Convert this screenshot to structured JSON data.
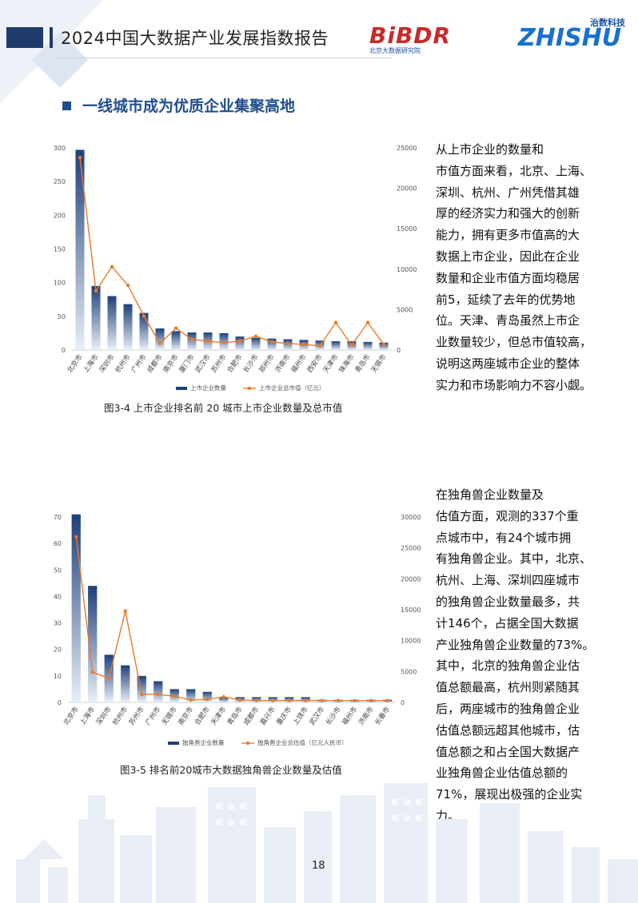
{
  "header": {
    "title": "2024中国大数据产业发展指数报告",
    "logo1_main": "BiBDR",
    "logo1_sub": "北京大数据研究院",
    "logo2_en": "ZHISHU",
    "logo2_cn": "治数科技"
  },
  "section": {
    "title": "一线城市成为优质企业集聚高地"
  },
  "paragraph1": {
    "lines": [
      "从上市企业的数量和",
      "市值方面来看，北京、上海、",
      "深圳、杭州、广州凭借其雄",
      "厚的经济实力和强大的创新",
      "能力，拥有更多市值高的大",
      "数据上市企业，因此在企业",
      "数量和企业市值方面均稳居",
      "前5，延续了去年的优势地",
      "位。天津、青岛虽然上市企",
      "业数量较少，但总市值较高，",
      "说明这两座城市企业的整体",
      "实力和市场影响力不容小觑。"
    ]
  },
  "paragraph2": {
    "lines": [
      "在独角兽企业数量及",
      "估值方面，观测的337个重",
      "点城市中，有24个城市拥",
      "有独角兽企业。其中，北京、",
      "杭州、上海、深圳四座城市",
      "的独角兽企业数量最多，共",
      "计146个，占据全国大数据",
      "产业独角兽企业数量的73%。",
      "其中，北京的独角兽企业估",
      "值总额最高，杭州则紧随其",
      "后，两座城市的独角兽企业",
      "估值总额远超其他城市，估",
      "值总额之和占全国大数据产",
      "业独角兽企业估值总额的",
      "71%，展现出极强的企业实",
      "力。"
    ]
  },
  "captions": {
    "fig1": "图3-4 上市企业排名前 20 城市上市企业数量及总市值",
    "fig2": "图3-5 排名前20城市大数据独角兽企业数量及估值"
  },
  "page_number": "18",
  "colors": {
    "bar_dark": "#1f3f7a",
    "bar_light": "#e8f0f8",
    "line": "#e87a2a",
    "accent": "#1f4e8c"
  },
  "chart_data": [
    {
      "type": "bar",
      "categories": [
        "北京市",
        "上海市",
        "深圳市",
        "杭州市",
        "广州市",
        "成都市",
        "南京市",
        "厦门市",
        "武汉市",
        "苏州市",
        "合肥市",
        "长沙市",
        "郑州市",
        "济南市",
        "福州市",
        "西安市",
        "天津市",
        "珠海市",
        "青岛市",
        "无锡市"
      ],
      "series": [
        {
          "name": "上市企业数量",
          "kind": "bar",
          "axis": "left",
          "values": [
            297,
            95,
            80,
            68,
            55,
            32,
            28,
            26,
            26,
            25,
            20,
            18,
            17,
            16,
            15,
            14,
            13,
            13,
            12,
            11
          ]
        },
        {
          "name": "上市企业总市值（亿元）",
          "kind": "line",
          "axis": "right",
          "values": [
            23800,
            7300,
            10300,
            8000,
            4200,
            800,
            2700,
            1300,
            1100,
            900,
            1100,
            1700,
            1000,
            800,
            700,
            500,
            3400,
            600,
            3400,
            700
          ]
        }
      ],
      "ylim": [
        0,
        300
      ],
      "yticks": [
        0,
        50,
        100,
        150,
        200,
        250,
        300
      ],
      "y2lim": [
        0,
        25000
      ],
      "y2ticks": [
        0,
        5000,
        10000,
        15000,
        20000,
        25000
      ],
      "legend": "bottom"
    },
    {
      "type": "bar",
      "categories": [
        "北京市",
        "上海市",
        "深圳市",
        "杭州市",
        "苏州市",
        "广州市",
        "无锡市",
        "南京市",
        "合肥市",
        "天津市",
        "青岛市",
        "成都市",
        "嘉兴市",
        "重庆市",
        "上饶市",
        "武汉市",
        "长沙市",
        "福州市",
        "济南市",
        "长春市"
      ],
      "series": [
        {
          "name": "独角兽企业数量",
          "kind": "bar",
          "axis": "left",
          "values": [
            71,
            44,
            18,
            14,
            10,
            8,
            5,
            5,
            4,
            2,
            2,
            2,
            2,
            2,
            2,
            1,
            1,
            1,
            1,
            1
          ]
        },
        {
          "name": "独角兽企业总估值（亿元人民币）",
          "kind": "line",
          "axis": "right",
          "values": [
            26800,
            4900,
            3900,
            14800,
            1300,
            1300,
            1000,
            400,
            500,
            900,
            400,
            300,
            300,
            300,
            300,
            300,
            300,
            300,
            300,
            300
          ]
        }
      ],
      "ylim": [
        0,
        70
      ],
      "yticks": [
        0,
        10,
        20,
        30,
        40,
        50,
        60,
        70
      ],
      "y2lim": [
        0,
        30000
      ],
      "y2ticks": [
        0,
        5000,
        10000,
        15000,
        20000,
        25000,
        30000
      ],
      "legend": "bottom"
    }
  ]
}
